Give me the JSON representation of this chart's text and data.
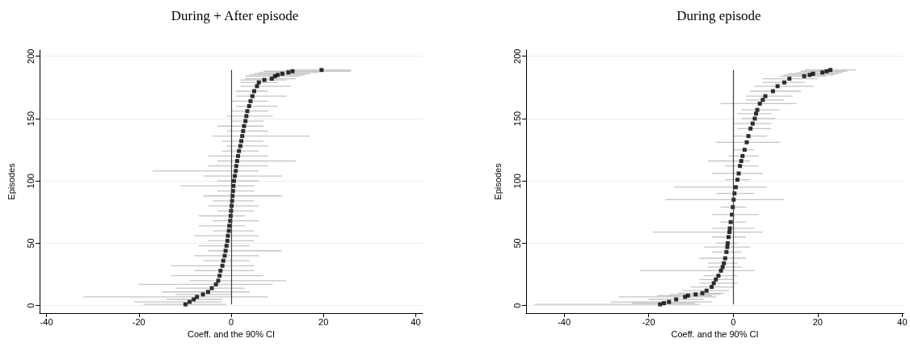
{
  "chart_data": [
    {
      "type": "scatter",
      "title": "During + After episode",
      "xlabel": "Coeff. and the 90% CI",
      "ylabel": "Episodes",
      "color": "#000000",
      "marker": "square",
      "grid": "y",
      "xlim": [
        -41.5,
        41.5
      ],
      "xticks": [
        -40,
        -20,
        0,
        20,
        40
      ],
      "ylim": [
        -6,
        205
      ],
      "yticks": [
        0,
        50,
        100,
        150,
        200
      ],
      "ref_lines": [
        {
          "axis": "x",
          "value": 0,
          "color": "#404040"
        }
      ],
      "x": [
        -9.9,
        -9.0,
        -8.1,
        -7.4,
        -6.1,
        -5.0,
        -4.2,
        -3.3,
        -2.8,
        -2.5,
        -2.3,
        -1.9,
        -1.7,
        -1.4,
        -1.2,
        -1.0,
        -0.8,
        -0.7,
        -0.5,
        -0.4,
        -0.2,
        -0.1,
        0.0,
        0.1,
        0.2,
        0.3,
        0.4,
        0.5,
        0.6,
        0.8,
        1.0,
        1.1,
        1.3,
        1.5,
        1.7,
        2.0,
        2.2,
        2.4,
        2.6,
        2.8,
        3.1,
        3.3,
        3.5,
        3.9,
        4.2,
        4.6,
        5.0,
        5.6,
        6.0,
        7.2,
        8.8,
        9.5,
        10.1,
        11.1,
        12.4,
        13.3,
        19.6
      ],
      "values": [
        1,
        3,
        5,
        7,
        9,
        11,
        14,
        17,
        20,
        24,
        28,
        32,
        36,
        40,
        44,
        48,
        52,
        56,
        60,
        64,
        68,
        72,
        76,
        80,
        84,
        88,
        92,
        96,
        100,
        104,
        108,
        112,
        116,
        120,
        124,
        128,
        132,
        136,
        140,
        144,
        148,
        152,
        156,
        160,
        164,
        168,
        172,
        176,
        179,
        181,
        182,
        184,
        185,
        186,
        187,
        188,
        189
      ],
      "xerrors": [
        [
          -19,
          -1
        ],
        [
          -21,
          -2
        ],
        [
          -14,
          -2
        ],
        [
          -32,
          8
        ],
        [
          -12,
          0
        ],
        [
          -15,
          4
        ],
        [
          -12,
          3
        ],
        [
          -20,
          9
        ],
        [
          -9,
          12
        ],
        [
          -13,
          7
        ],
        [
          -8,
          5
        ],
        [
          -13,
          5
        ],
        [
          -6,
          4
        ],
        [
          -8,
          6
        ],
        [
          -5,
          11
        ],
        [
          -7,
          4
        ],
        [
          -5,
          5
        ],
        [
          -8,
          6
        ],
        [
          -4,
          5
        ],
        [
          -7,
          3
        ],
        [
          -4,
          6
        ],
        [
          -7,
          3
        ],
        [
          -3,
          5
        ],
        [
          -5,
          6
        ],
        [
          -4,
          5
        ],
        [
          -6,
          11
        ],
        [
          -3,
          5
        ],
        [
          -11,
          5
        ],
        [
          -3,
          6
        ],
        [
          -6,
          11
        ],
        [
          -17,
          6
        ],
        [
          -5,
          8
        ],
        [
          -3,
          14
        ],
        [
          -5,
          8
        ],
        [
          -2,
          6
        ],
        [
          -1,
          8
        ],
        [
          -2,
          7
        ],
        [
          -4,
          17
        ],
        [
          -1,
          8
        ],
        [
          -3,
          7
        ],
        [
          0,
          7
        ],
        [
          -1,
          9
        ],
        [
          0,
          8
        ],
        [
          1,
          10
        ],
        [
          0,
          8
        ],
        [
          1,
          12
        ],
        [
          1,
          8
        ],
        [
          2,
          13
        ],
        [
          2,
          10
        ],
        [
          2,
          12
        ],
        [
          3,
          14
        ],
        [
          3,
          15
        ],
        [
          4,
          16
        ],
        [
          5,
          17
        ],
        [
          6,
          19
        ],
        [
          7,
          26
        ],
        [
          12,
          26
        ]
      ]
    },
    {
      "type": "scatter",
      "title": "During episode",
      "xlabel": "Coeff. and the 90% CI",
      "ylabel": "Episodes",
      "color": "#000000",
      "marker": "square",
      "grid": "y",
      "xlim": [
        -49,
        40.3
      ],
      "xticks": [
        -40,
        -20,
        0,
        20,
        40
      ],
      "ylim": [
        -6,
        205
      ],
      "yticks": [
        0,
        50,
        100,
        150,
        200
      ],
      "ref_lines": [
        {
          "axis": "x",
          "value": 0,
          "color": "#404040"
        }
      ],
      "x": [
        -17.3,
        -16.4,
        -15.2,
        -13.5,
        -11.4,
        -10.7,
        -8.9,
        -7.3,
        -6.3,
        -5.1,
        -4.6,
        -4.1,
        -3.5,
        -2.9,
        -2.5,
        -2.2,
        -1.9,
        -1.6,
        -1.4,
        -1.3,
        -1.1,
        -0.9,
        -0.8,
        -0.6,
        -0.3,
        -0.1,
        0.1,
        0.3,
        0.6,
        1.0,
        1.3,
        1.6,
        1.9,
        2.2,
        2.7,
        3.2,
        3.6,
        4.1,
        4.6,
        5.1,
        5.4,
        5.7,
        6.3,
        7.0,
        7.6,
        9.4,
        10.5,
        12.1,
        13.3,
        16.8,
        18.1,
        18.9,
        21.1,
        22.1,
        23.0
      ],
      "values": [
        1,
        2,
        3,
        5,
        7,
        8,
        9,
        10,
        12,
        15,
        18,
        21,
        24,
        28,
        31,
        34,
        38,
        43,
        47,
        50,
        55,
        59,
        62,
        67,
        73,
        79,
        85,
        90,
        95,
        101,
        106,
        112,
        116,
        120,
        125,
        131,
        136,
        142,
        146,
        150,
        154,
        157,
        162,
        165,
        168,
        172,
        176,
        179,
        182,
        184,
        185,
        186,
        187,
        188,
        189
      ],
      "xerrors": [
        [
          -47,
          -8
        ],
        [
          -24,
          -9
        ],
        [
          -29,
          -5
        ],
        [
          -20,
          -7
        ],
        [
          -27,
          -4
        ],
        [
          -18,
          -5
        ],
        [
          -15,
          -3
        ],
        [
          -13,
          -2
        ],
        [
          -12,
          -1
        ],
        [
          -10,
          0
        ],
        [
          -8,
          1
        ],
        [
          -8,
          0
        ],
        [
          -7,
          1
        ],
        [
          -22,
          5
        ],
        [
          -6,
          2
        ],
        [
          -6,
          1
        ],
        [
          -8,
          3
        ],
        [
          -5,
          2
        ],
        [
          -7,
          4
        ],
        [
          -4,
          1
        ],
        [
          -5,
          3
        ],
        [
          -19,
          7
        ],
        [
          -5,
          5
        ],
        [
          -3,
          3
        ],
        [
          -5,
          6
        ],
        [
          -3,
          3
        ],
        [
          -16,
          12
        ],
        [
          -4,
          5
        ],
        [
          -14,
          8
        ],
        [
          -2,
          4
        ],
        [
          -5,
          7
        ],
        [
          -2,
          6
        ],
        [
          -6,
          4
        ],
        [
          -1,
          6
        ],
        [
          0,
          5
        ],
        [
          -4,
          11
        ],
        [
          0,
          8
        ],
        [
          1,
          9
        ],
        [
          0,
          9
        ],
        [
          2,
          10
        ],
        [
          1,
          9
        ],
        [
          2,
          11
        ],
        [
          -3,
          15
        ],
        [
          3,
          12
        ],
        [
          3,
          14
        ],
        [
          4,
          16
        ],
        [
          5,
          19
        ],
        [
          7,
          17
        ],
        [
          7,
          20
        ],
        [
          11,
          22
        ],
        [
          12,
          24
        ],
        [
          13,
          25
        ],
        [
          15,
          26
        ],
        [
          16,
          27
        ],
        [
          17,
          29
        ]
      ]
    }
  ]
}
